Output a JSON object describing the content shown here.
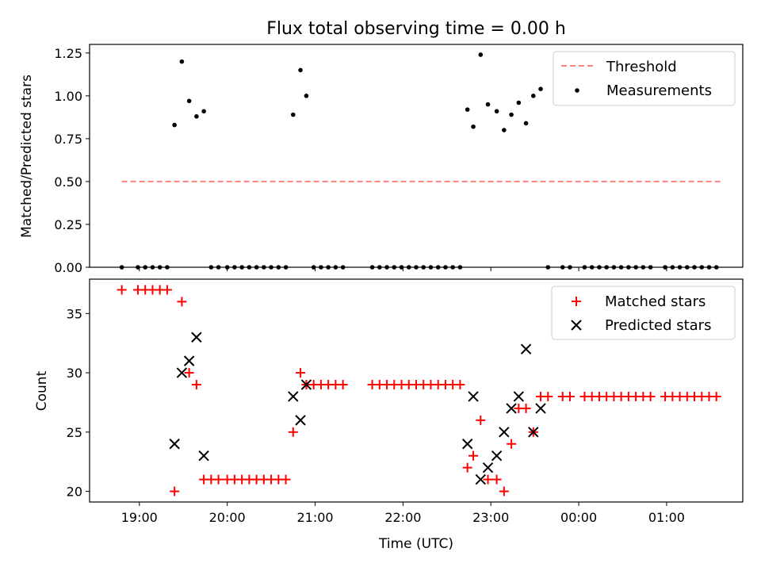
{
  "chart_data": [
    {
      "type": "scatter",
      "title": "Flux total observing time = 0.00 h",
      "xlabel": "",
      "ylabel": "Matched/Predicted stars",
      "ylim": [
        0.0,
        1.3
      ],
      "xlim": [
        "18:26",
        "25:52"
      ],
      "yticks": [
        "0.00",
        "0.25",
        "0.50",
        "0.75",
        "1.00",
        "1.25"
      ],
      "xticks": [
        "19:00",
        "20:00",
        "21:00",
        "22:00",
        "23:00",
        "00:00",
        "01:00"
      ],
      "xtick_labels_shown": false,
      "grid": false,
      "legend_position": "top-right",
      "legend": [
        "Threshold",
        "Measurements"
      ],
      "colors": {
        "threshold": "#ff7f7f",
        "measurements": "#000000"
      },
      "threshold": {
        "name": "Threshold",
        "y": 0.5,
        "x": [
          "18:48",
          "25:38"
        ]
      },
      "measurements": {
        "name": "Measurements",
        "x": [
          "18:48",
          "18:59",
          "19:04",
          "19:09",
          "19:14",
          "19:19",
          "19:24",
          "19:29",
          "19:34",
          "19:39",
          "19:44",
          "19:49",
          "19:54",
          "20:00",
          "20:05",
          "20:10",
          "20:15",
          "20:20",
          "20:25",
          "20:30",
          "20:35",
          "20:40",
          "20:45",
          "20:50",
          "20:54",
          "20:59",
          "21:04",
          "21:09",
          "21:14",
          "21:19",
          "21:39",
          "21:44",
          "21:49",
          "21:54",
          "21:59",
          "22:04",
          "22:09",
          "22:14",
          "22:19",
          "22:24",
          "22:29",
          "22:34",
          "22:39",
          "22:44",
          "22:48",
          "22:53",
          "22:58",
          "23:04",
          "23:09",
          "23:14",
          "23:19",
          "23:24",
          "23:29",
          "23:34",
          "23:39",
          "23:49",
          "23:54",
          "00:04",
          "00:09",
          "00:14",
          "00:19",
          "00:24",
          "00:29",
          "00:34",
          "00:39",
          "00:44",
          "00:49",
          "00:59",
          "01:04",
          "01:09",
          "01:14",
          "01:19",
          "01:24",
          "01:29",
          "01:34"
        ],
        "y": [
          0,
          0,
          0,
          0,
          0,
          0,
          0.83,
          1.2,
          0.97,
          0.88,
          0.91,
          0,
          0,
          0,
          0,
          0,
          0,
          0,
          0,
          0,
          0,
          0,
          0.89,
          1.15,
          1.0,
          0,
          0,
          0,
          0,
          0,
          0,
          0,
          0,
          0,
          0,
          0,
          0,
          0,
          0,
          0,
          0,
          0,
          0,
          0.92,
          0.82,
          1.24,
          0.95,
          0.91,
          0.8,
          0.89,
          0.96,
          0.84,
          1.0,
          1.04,
          0,
          0,
          0,
          0,
          0,
          0,
          0,
          0,
          0,
          0,
          0,
          0,
          0,
          0,
          0,
          0,
          0,
          0,
          0,
          0,
          0
        ]
      }
    },
    {
      "type": "scatter",
      "title": "",
      "xlabel": "Time (UTC)",
      "ylabel": "Count",
      "ylim": [
        19.1,
        37.9
      ],
      "xlim": [
        "18:26",
        "25:52"
      ],
      "yticks": [
        "20",
        "25",
        "30",
        "35"
      ],
      "xticks": [
        "19:00",
        "20:00",
        "21:00",
        "22:00",
        "23:00",
        "00:00",
        "01:00"
      ],
      "grid": false,
      "legend_position": "top-right",
      "legend": [
        "Matched stars",
        "Predicted stars"
      ],
      "colors": {
        "matched": "#ff0000",
        "predicted": "#000000"
      },
      "series": [
        {
          "name": "Matched stars",
          "marker": "+",
          "x": [
            "18:48",
            "18:59",
            "19:04",
            "19:09",
            "19:14",
            "19:19",
            "19:24",
            "19:29",
            "19:34",
            "19:39",
            "19:44",
            "19:49",
            "19:54",
            "20:00",
            "20:05",
            "20:10",
            "20:15",
            "20:20",
            "20:25",
            "20:30",
            "20:35",
            "20:40",
            "20:45",
            "20:50",
            "20:54",
            "20:59",
            "21:04",
            "21:09",
            "21:14",
            "21:19",
            "21:39",
            "21:44",
            "21:49",
            "21:54",
            "21:59",
            "22:04",
            "22:09",
            "22:14",
            "22:19",
            "22:24",
            "22:29",
            "22:34",
            "22:39",
            "22:44",
            "22:48",
            "22:53",
            "22:58",
            "23:04",
            "23:09",
            "23:14",
            "23:19",
            "23:24",
            "23:29",
            "23:34",
            "23:39",
            "23:49",
            "23:54",
            "00:04",
            "00:09",
            "00:14",
            "00:19",
            "00:24",
            "00:29",
            "00:34",
            "00:39",
            "00:44",
            "00:49",
            "00:59",
            "01:04",
            "01:09",
            "01:14",
            "01:19",
            "01:24",
            "01:29",
            "01:34"
          ],
          "y": [
            37,
            37,
            37,
            37,
            37,
            37,
            20,
            36,
            30,
            29,
            21,
            21,
            21,
            21,
            21,
            21,
            21,
            21,
            21,
            21,
            21,
            21,
            25,
            30,
            29,
            29,
            29,
            29,
            29,
            29,
            29,
            29,
            29,
            29,
            29,
            29,
            29,
            29,
            29,
            29,
            29,
            29,
            29,
            22,
            23,
            26,
            21,
            21,
            20,
            24,
            27,
            27,
            25,
            28,
            28,
            28,
            28,
            28,
            28,
            28,
            28,
            28,
            28,
            28,
            28,
            28,
            28,
            28,
            28,
            28,
            28,
            28,
            28,
            28,
            28
          ]
        },
        {
          "name": "Predicted stars",
          "marker": "x",
          "x": [
            "19:24",
            "19:29",
            "19:34",
            "19:39",
            "19:44",
            "20:45",
            "20:50",
            "20:54",
            "22:44",
            "22:48",
            "22:53",
            "22:58",
            "23:04",
            "23:09",
            "23:14",
            "23:19",
            "23:24",
            "23:29",
            "23:34"
          ],
          "y": [
            24,
            30,
            31,
            33,
            23,
            28,
            26,
            29,
            24,
            28,
            21,
            22,
            23,
            25,
            27,
            28,
            32,
            25,
            27
          ]
        }
      ]
    }
  ]
}
